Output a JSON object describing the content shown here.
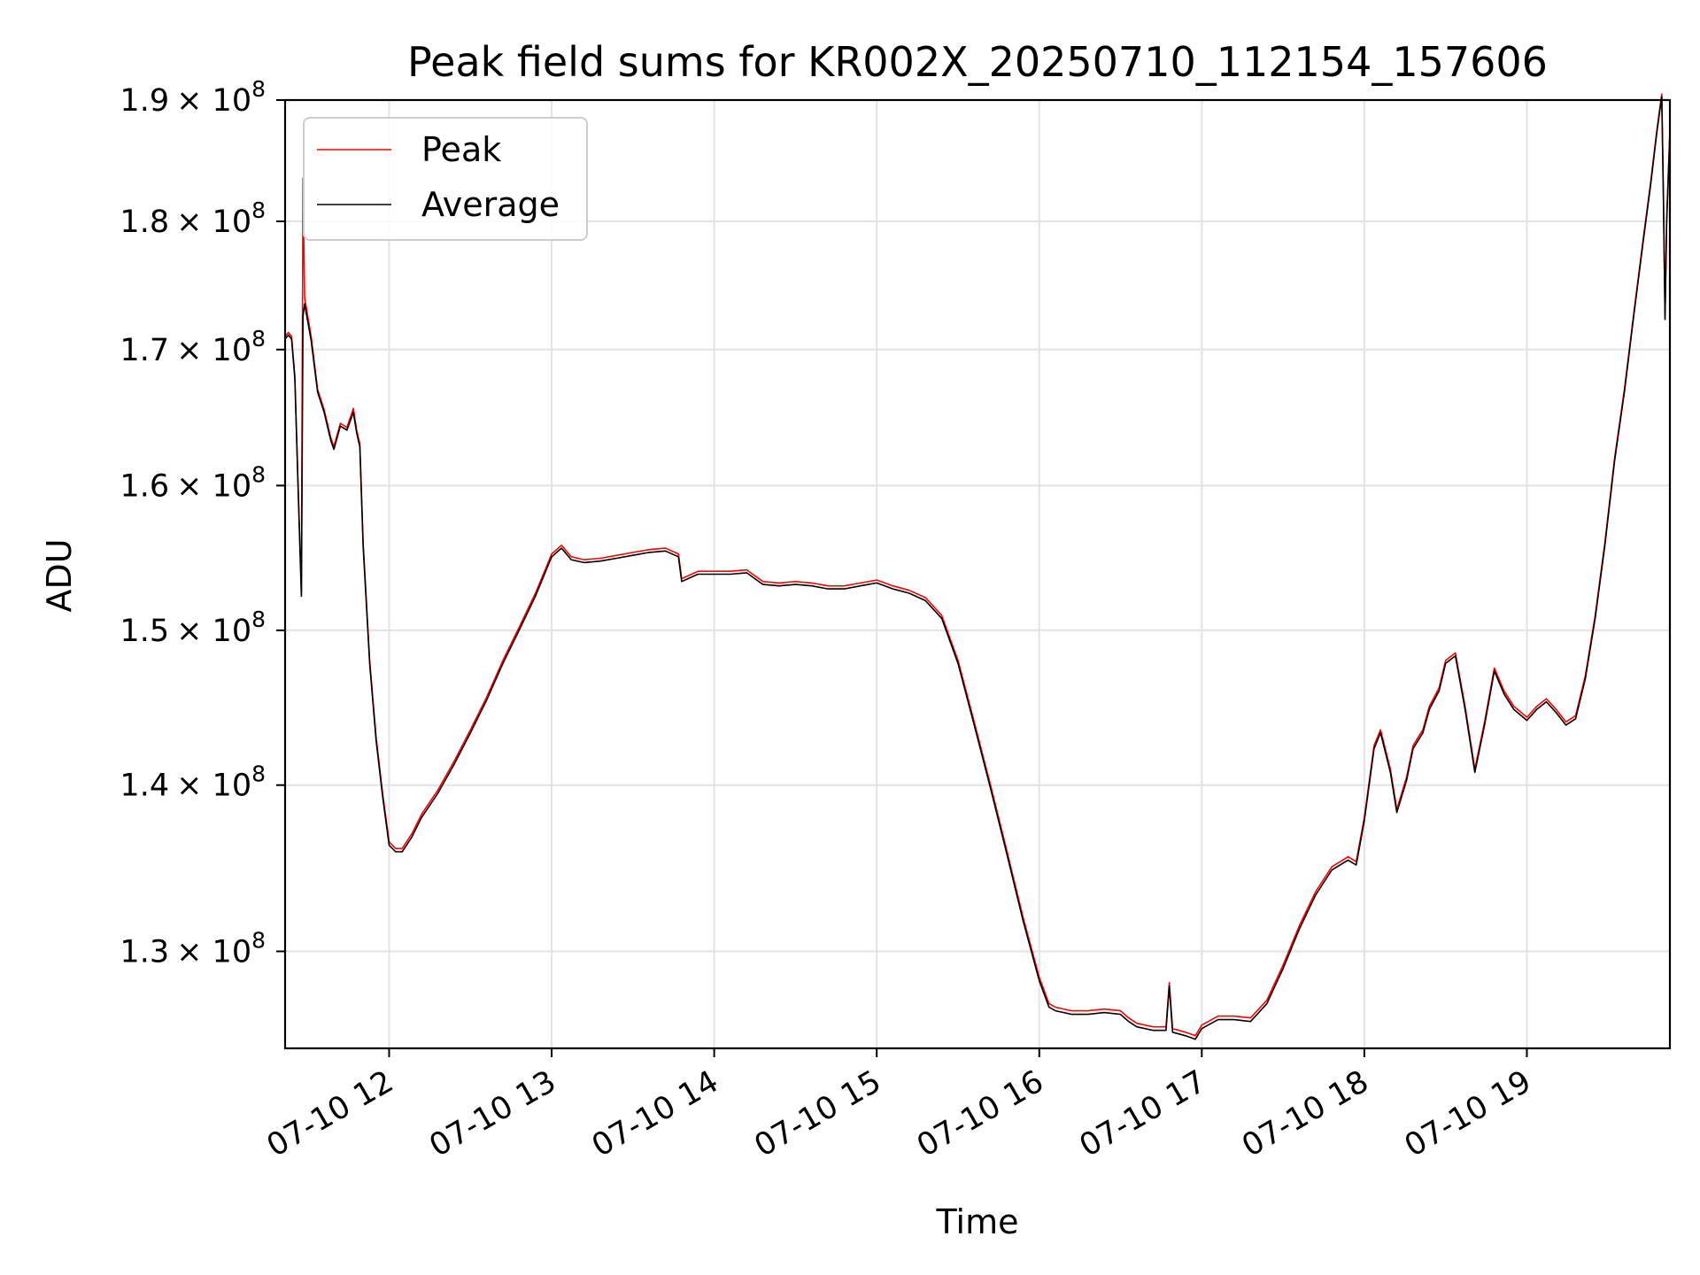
{
  "chart_data": {
    "type": "line",
    "title": "Peak field sums for KR002X_20250710_112154_157606",
    "xlabel": "Time",
    "ylabel": "ADU",
    "x_unit": "hour",
    "x_date_prefix": "07-10",
    "xlim": [
      11.36,
      19.88
    ],
    "ylim": [
      124500000,
      190000000
    ],
    "y_scale": "log",
    "grid": true,
    "legend_position": "upper left",
    "x_ticks": [
      {
        "value": 12,
        "label": "07-10 12"
      },
      {
        "value": 13,
        "label": "07-10 13"
      },
      {
        "value": 14,
        "label": "07-10 14"
      },
      {
        "value": 15,
        "label": "07-10 15"
      },
      {
        "value": 16,
        "label": "07-10 16"
      },
      {
        "value": 17,
        "label": "07-10 17"
      },
      {
        "value": 18,
        "label": "07-10 18"
      },
      {
        "value": 19,
        "label": "07-10 19"
      }
    ],
    "y_ticks": [
      {
        "value": 130000000,
        "mantissa": "1.3",
        "base": "× 10",
        "exp": "8"
      },
      {
        "value": 140000000,
        "mantissa": "1.4",
        "base": "× 10",
        "exp": "8"
      },
      {
        "value": 150000000,
        "mantissa": "1.5",
        "base": "× 10",
        "exp": "8"
      },
      {
        "value": 160000000,
        "mantissa": "1.6",
        "base": "× 10",
        "exp": "8"
      },
      {
        "value": 170000000,
        "mantissa": "1.7",
        "base": "× 10",
        "exp": "8"
      },
      {
        "value": 180000000,
        "mantissa": "1.8",
        "base": "× 10",
        "exp": "8"
      },
      {
        "value": 190000000,
        "mantissa": "1.9",
        "base": "× 10",
        "exp": "8"
      }
    ],
    "series": [
      {
        "name": "Peak",
        "color": "#ff0000",
        "points": [
          [
            11.36,
            171.0
          ],
          [
            11.38,
            171.3
          ],
          [
            11.4,
            171.0
          ],
          [
            11.42,
            168.0
          ],
          [
            11.44,
            160.0
          ],
          [
            11.46,
            152.5
          ],
          [
            11.47,
            183.5
          ],
          [
            11.48,
            174.0
          ],
          [
            11.52,
            171.0
          ],
          [
            11.56,
            167.0
          ],
          [
            11.6,
            165.5
          ],
          [
            11.64,
            163.5
          ],
          [
            11.66,
            162.8
          ],
          [
            11.7,
            164.5
          ],
          [
            11.74,
            164.2
          ],
          [
            11.78,
            165.6
          ],
          [
            11.8,
            164.0
          ],
          [
            11.82,
            163.0
          ],
          [
            11.84,
            156.0
          ],
          [
            11.88,
            148.0
          ],
          [
            11.92,
            143.0
          ],
          [
            11.96,
            139.5
          ],
          [
            12.0,
            136.5
          ],
          [
            12.04,
            136.1
          ],
          [
            12.08,
            136.1
          ],
          [
            12.14,
            137.0
          ],
          [
            12.2,
            138.2
          ],
          [
            12.3,
            139.7
          ],
          [
            12.4,
            141.5
          ],
          [
            12.5,
            143.5
          ],
          [
            12.6,
            145.6
          ],
          [
            12.7,
            148.0
          ],
          [
            12.8,
            150.2
          ],
          [
            12.9,
            152.5
          ],
          [
            13.0,
            155.2
          ],
          [
            13.06,
            155.8
          ],
          [
            13.12,
            155.0
          ],
          [
            13.2,
            154.8
          ],
          [
            13.3,
            154.9
          ],
          [
            13.4,
            155.1
          ],
          [
            13.5,
            155.3
          ],
          [
            13.6,
            155.5
          ],
          [
            13.7,
            155.6
          ],
          [
            13.78,
            155.2
          ],
          [
            13.8,
            153.5
          ],
          [
            13.9,
            154.0
          ],
          [
            14.0,
            154.0
          ],
          [
            14.1,
            154.0
          ],
          [
            14.2,
            154.1
          ],
          [
            14.3,
            153.3
          ],
          [
            14.4,
            153.2
          ],
          [
            14.5,
            153.3
          ],
          [
            14.6,
            153.2
          ],
          [
            14.7,
            153.0
          ],
          [
            14.8,
            153.0
          ],
          [
            14.9,
            153.2
          ],
          [
            15.0,
            153.4
          ],
          [
            15.1,
            153.0
          ],
          [
            15.2,
            152.7
          ],
          [
            15.3,
            152.2
          ],
          [
            15.4,
            151.0
          ],
          [
            15.5,
            148.0
          ],
          [
            15.6,
            144.0
          ],
          [
            15.7,
            140.0
          ],
          [
            15.8,
            136.0
          ],
          [
            15.9,
            132.0
          ],
          [
            16.0,
            128.5
          ],
          [
            16.06,
            127.0
          ],
          [
            16.1,
            126.8
          ],
          [
            16.2,
            126.6
          ],
          [
            16.3,
            126.6
          ],
          [
            16.4,
            126.7
          ],
          [
            16.5,
            126.6
          ],
          [
            16.55,
            126.2
          ],
          [
            16.6,
            125.9
          ],
          [
            16.7,
            125.7
          ],
          [
            16.78,
            125.7
          ],
          [
            16.8,
            128.2
          ],
          [
            16.82,
            125.6
          ],
          [
            16.9,
            125.4
          ],
          [
            16.96,
            125.2
          ],
          [
            17.0,
            125.8
          ],
          [
            17.1,
            126.3
          ],
          [
            17.2,
            126.3
          ],
          [
            17.3,
            126.2
          ],
          [
            17.4,
            127.2
          ],
          [
            17.5,
            129.2
          ],
          [
            17.6,
            131.5
          ],
          [
            17.7,
            133.5
          ],
          [
            17.8,
            135.0
          ],
          [
            17.9,
            135.6
          ],
          [
            17.95,
            135.3
          ],
          [
            18.0,
            138.0
          ],
          [
            18.06,
            142.5
          ],
          [
            18.1,
            143.5
          ],
          [
            18.16,
            141.0
          ],
          [
            18.2,
            138.5
          ],
          [
            18.26,
            140.5
          ],
          [
            18.3,
            142.5
          ],
          [
            18.36,
            143.5
          ],
          [
            18.4,
            145.0
          ],
          [
            18.46,
            146.2
          ],
          [
            18.5,
            148.0
          ],
          [
            18.56,
            148.5
          ],
          [
            18.62,
            145.0
          ],
          [
            18.68,
            141.0
          ],
          [
            18.74,
            144.0
          ],
          [
            18.8,
            147.5
          ],
          [
            18.86,
            146.0
          ],
          [
            18.92,
            145.0
          ],
          [
            19.0,
            144.3
          ],
          [
            19.06,
            145.0
          ],
          [
            19.12,
            145.5
          ],
          [
            19.18,
            144.8
          ],
          [
            19.24,
            144.0
          ],
          [
            19.3,
            144.4
          ],
          [
            19.36,
            147.0
          ],
          [
            19.42,
            151.0
          ],
          [
            19.48,
            156.0
          ],
          [
            19.54,
            162.0
          ],
          [
            19.6,
            167.0
          ],
          [
            19.66,
            173.0
          ],
          [
            19.72,
            179.0
          ],
          [
            19.76,
            183.0
          ],
          [
            19.8,
            187.5
          ],
          [
            19.83,
            190.5
          ],
          [
            19.84,
            182.0
          ],
          [
            19.85,
            172.5
          ],
          [
            19.86,
            180.0
          ],
          [
            19.88,
            187.5
          ]
        ]
      },
      {
        "name": "Average",
        "color": "#000000",
        "points": [
          [
            11.36,
            170.8
          ],
          [
            11.38,
            171.1
          ],
          [
            11.4,
            170.8
          ],
          [
            11.42,
            167.8
          ],
          [
            11.44,
            159.8
          ],
          [
            11.46,
            152.3
          ],
          [
            11.47,
            172.5
          ],
          [
            11.48,
            173.5
          ],
          [
            11.52,
            170.7
          ],
          [
            11.56,
            166.8
          ],
          [
            11.6,
            165.3
          ],
          [
            11.64,
            163.3
          ],
          [
            11.66,
            162.6
          ],
          [
            11.7,
            164.3
          ],
          [
            11.74,
            164.0
          ],
          [
            11.78,
            165.3
          ],
          [
            11.8,
            163.8
          ],
          [
            11.82,
            162.8
          ],
          [
            11.84,
            155.8
          ],
          [
            11.88,
            147.8
          ],
          [
            11.92,
            142.8
          ],
          [
            11.96,
            139.3
          ],
          [
            12.0,
            136.3
          ],
          [
            12.04,
            135.9
          ],
          [
            12.08,
            135.9
          ],
          [
            12.14,
            136.8
          ],
          [
            12.2,
            138.0
          ],
          [
            12.3,
            139.5
          ],
          [
            12.4,
            141.3
          ],
          [
            12.5,
            143.3
          ],
          [
            12.6,
            145.4
          ],
          [
            12.7,
            147.8
          ],
          [
            12.8,
            150.0
          ],
          [
            12.9,
            152.3
          ],
          [
            13.0,
            155.0
          ],
          [
            13.06,
            155.6
          ],
          [
            13.12,
            154.8
          ],
          [
            13.2,
            154.6
          ],
          [
            13.3,
            154.7
          ],
          [
            13.4,
            154.9
          ],
          [
            13.5,
            155.1
          ],
          [
            13.6,
            155.3
          ],
          [
            13.7,
            155.4
          ],
          [
            13.78,
            155.0
          ],
          [
            13.8,
            153.3
          ],
          [
            13.9,
            153.8
          ],
          [
            14.0,
            153.8
          ],
          [
            14.1,
            153.8
          ],
          [
            14.2,
            153.9
          ],
          [
            14.3,
            153.1
          ],
          [
            14.4,
            153.0
          ],
          [
            14.5,
            153.1
          ],
          [
            14.6,
            153.0
          ],
          [
            14.7,
            152.8
          ],
          [
            14.8,
            152.8
          ],
          [
            14.9,
            153.0
          ],
          [
            15.0,
            153.2
          ],
          [
            15.1,
            152.8
          ],
          [
            15.2,
            152.5
          ],
          [
            15.3,
            152.0
          ],
          [
            15.4,
            150.8
          ],
          [
            15.5,
            147.8
          ],
          [
            15.6,
            143.8
          ],
          [
            15.7,
            139.8
          ],
          [
            15.8,
            135.8
          ],
          [
            15.9,
            131.8
          ],
          [
            16.0,
            128.3
          ],
          [
            16.06,
            126.8
          ],
          [
            16.1,
            126.6
          ],
          [
            16.2,
            126.4
          ],
          [
            16.3,
            126.4
          ],
          [
            16.4,
            126.5
          ],
          [
            16.5,
            126.4
          ],
          [
            16.55,
            126.0
          ],
          [
            16.6,
            125.7
          ],
          [
            16.7,
            125.5
          ],
          [
            16.78,
            125.5
          ],
          [
            16.8,
            128.0
          ],
          [
            16.82,
            125.4
          ],
          [
            16.9,
            125.2
          ],
          [
            16.96,
            125.0
          ],
          [
            17.0,
            125.6
          ],
          [
            17.1,
            126.1
          ],
          [
            17.2,
            126.1
          ],
          [
            17.3,
            126.0
          ],
          [
            17.4,
            127.0
          ],
          [
            17.5,
            129.0
          ],
          [
            17.6,
            131.3
          ],
          [
            17.7,
            133.3
          ],
          [
            17.8,
            134.8
          ],
          [
            17.9,
            135.4
          ],
          [
            17.95,
            135.1
          ],
          [
            18.0,
            137.8
          ],
          [
            18.06,
            142.3
          ],
          [
            18.1,
            143.3
          ],
          [
            18.16,
            140.8
          ],
          [
            18.2,
            138.3
          ],
          [
            18.26,
            140.3
          ],
          [
            18.3,
            142.3
          ],
          [
            18.36,
            143.3
          ],
          [
            18.4,
            144.8
          ],
          [
            18.46,
            146.0
          ],
          [
            18.5,
            147.8
          ],
          [
            18.56,
            148.3
          ],
          [
            18.62,
            144.8
          ],
          [
            18.68,
            140.8
          ],
          [
            18.74,
            143.8
          ],
          [
            18.8,
            147.3
          ],
          [
            18.86,
            145.8
          ],
          [
            18.92,
            144.8
          ],
          [
            19.0,
            144.1
          ],
          [
            19.06,
            144.8
          ],
          [
            19.12,
            145.3
          ],
          [
            19.18,
            144.6
          ],
          [
            19.24,
            143.8
          ],
          [
            19.3,
            144.2
          ],
          [
            19.36,
            146.8
          ],
          [
            19.42,
            150.8
          ],
          [
            19.48,
            155.8
          ],
          [
            19.54,
            161.8
          ],
          [
            19.6,
            166.8
          ],
          [
            19.66,
            172.8
          ],
          [
            19.72,
            178.8
          ],
          [
            19.76,
            182.8
          ],
          [
            19.8,
            187.3
          ],
          [
            19.83,
            190.3
          ],
          [
            19.84,
            181.8
          ],
          [
            19.85,
            172.3
          ],
          [
            19.86,
            179.8
          ],
          [
            19.88,
            187.3
          ]
        ]
      }
    ],
    "series_value_unit": "millions ADU"
  }
}
